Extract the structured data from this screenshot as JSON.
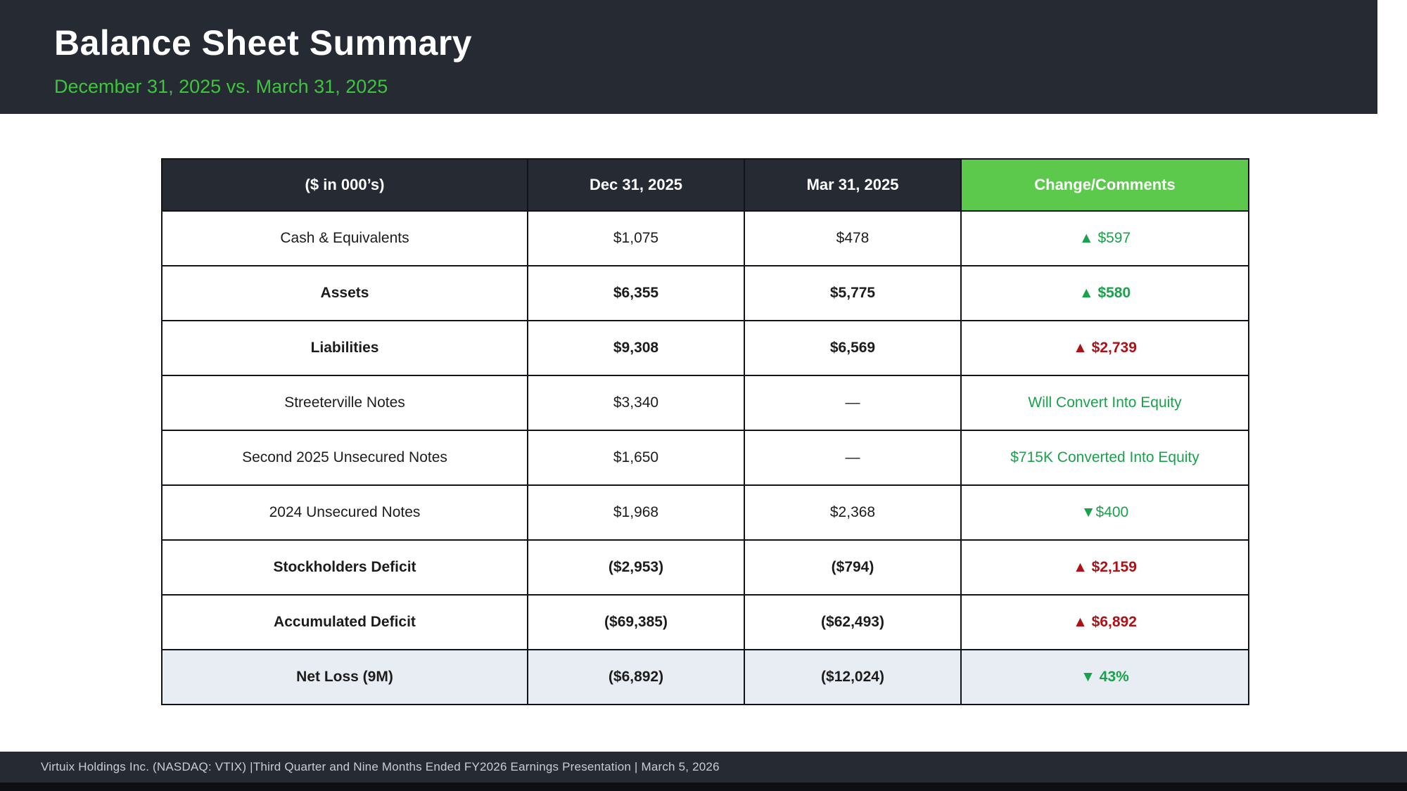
{
  "slide": {
    "title": "Balance Sheet Summary",
    "subtitle": "December 31, 2025 vs. March 31, 2025",
    "footer": "Virtuix Holdings Inc. (NASDAQ: VTIX) |Third Quarter and  Nine Months Ended FY2026 Earnings Presentation | March 5, 2026"
  },
  "table": {
    "headers": [
      "($ in 000’s)",
      "Dec 31, 2025",
      "Mar 31, 2025",
      "Change/Comments"
    ],
    "rows": [
      {
        "label": "Cash & Equivalents",
        "dec": "$1,075",
        "mar": "$478",
        "change": "▲ $597",
        "bold": false,
        "change_color": "green",
        "highlight": false
      },
      {
        "label": "Assets",
        "dec": "$6,355",
        "mar": "$5,775",
        "change": "▲ $580",
        "bold": true,
        "change_color": "green",
        "highlight": false
      },
      {
        "label": "Liabilities",
        "dec": "$9,308",
        "mar": "$6,569",
        "change": "▲ $2,739",
        "bold": true,
        "change_color": "red",
        "highlight": false
      },
      {
        "label": "Streeterville Notes",
        "dec": "$3,340",
        "mar": "—",
        "change": "Will Convert Into Equity",
        "bold": false,
        "change_color": "green",
        "highlight": false
      },
      {
        "label": "Second 2025 Unsecured Notes",
        "dec": "$1,650",
        "mar": "—",
        "change": "$715K Converted Into Equity",
        "bold": false,
        "change_color": "green",
        "highlight": false
      },
      {
        "label": "2024 Unsecured Notes",
        "dec": "$1,968",
        "mar": "$2,368",
        "change": "▼$400",
        "bold": false,
        "change_color": "green",
        "highlight": false
      },
      {
        "label": "Stockholders Deficit",
        "dec": "($2,953)",
        "mar": "($794)",
        "change": "▲ $2,159",
        "bold": true,
        "change_color": "red",
        "highlight": false
      },
      {
        "label": "Accumulated Deficit",
        "dec": "($69,385)",
        "mar": "($62,493)",
        "change": "▲ $6,892",
        "bold": true,
        "change_color": "red",
        "highlight": false
      },
      {
        "label": "Net Loss (9M)",
        "dec": "($6,892)",
        "mar": "($12,024)",
        "change": "▼ 43%",
        "bold": true,
        "change_color": "green",
        "highlight": true
      }
    ]
  },
  "colors": {
    "dark": "#262a33",
    "accent_green": "#5cc84c",
    "subtitle_green": "#3ec43e",
    "positive_green": "#19a14b",
    "negative_red": "#ad1117",
    "highlight_row": "#e8edf4"
  }
}
